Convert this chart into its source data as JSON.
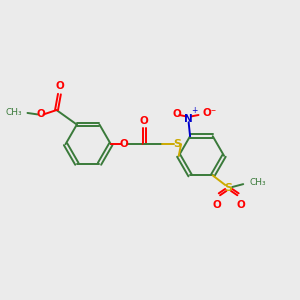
{
  "background_color": "#ebebeb",
  "bond_color": "#3a7a3a",
  "bond_width": 1.4,
  "colors": {
    "O": "#ff0000",
    "N": "#0000cc",
    "S": "#ccaa00",
    "C": "#3a7a3a"
  },
  "figsize": [
    3.0,
    3.0
  ],
  "dpi": 100,
  "xlim": [
    0,
    10
  ],
  "ylim": [
    0,
    10
  ]
}
